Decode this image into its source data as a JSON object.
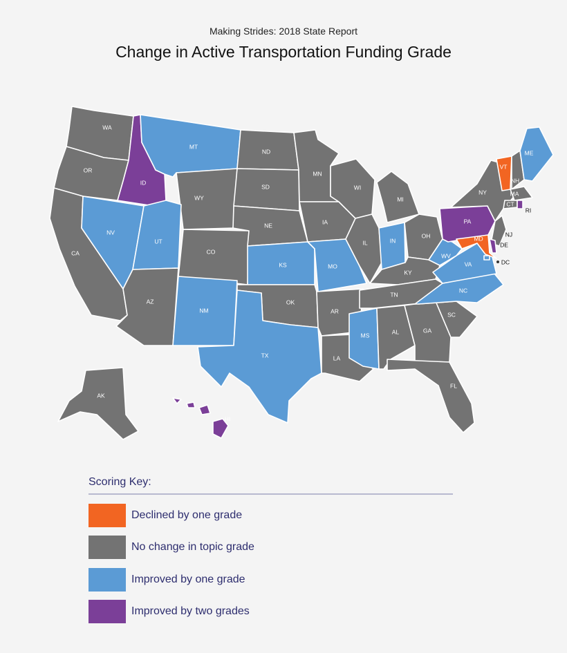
{
  "header": {
    "supertitle": "Making Strides:  2018 State Report",
    "title": "Change in Active Transportation Funding Grade"
  },
  "colors": {
    "declined": "#f26522",
    "no_change": "#737373",
    "improved_one": "#5b9bd5",
    "improved_two": "#7b3f98"
  },
  "states": [
    {
      "abbr": "WA",
      "category": "no_change"
    },
    {
      "abbr": "OR",
      "category": "no_change"
    },
    {
      "abbr": "CA",
      "category": "no_change"
    },
    {
      "abbr": "ID",
      "category": "improved_two"
    },
    {
      "abbr": "NV",
      "category": "improved_one"
    },
    {
      "abbr": "MT",
      "category": "improved_one"
    },
    {
      "abbr": "WY",
      "category": "no_change"
    },
    {
      "abbr": "UT",
      "category": "improved_one"
    },
    {
      "abbr": "AZ",
      "category": "no_change"
    },
    {
      "abbr": "CO",
      "category": "no_change"
    },
    {
      "abbr": "NM",
      "category": "improved_one"
    },
    {
      "abbr": "ND",
      "category": "no_change"
    },
    {
      "abbr": "SD",
      "category": "no_change"
    },
    {
      "abbr": "NE",
      "category": "no_change"
    },
    {
      "abbr": "KS",
      "category": "improved_one"
    },
    {
      "abbr": "OK",
      "category": "no_change"
    },
    {
      "abbr": "TX",
      "category": "improved_one"
    },
    {
      "abbr": "MN",
      "category": "no_change"
    },
    {
      "abbr": "IA",
      "category": "no_change"
    },
    {
      "abbr": "MO",
      "category": "improved_one"
    },
    {
      "abbr": "AR",
      "category": "no_change"
    },
    {
      "abbr": "LA",
      "category": "no_change"
    },
    {
      "abbr": "WI",
      "category": "no_change"
    },
    {
      "abbr": "IL",
      "category": "no_change"
    },
    {
      "abbr": "MI",
      "category": "no_change"
    },
    {
      "abbr": "IN",
      "category": "improved_one"
    },
    {
      "abbr": "OH",
      "category": "no_change"
    },
    {
      "abbr": "KY",
      "category": "no_change"
    },
    {
      "abbr": "TN",
      "category": "no_change"
    },
    {
      "abbr": "MS",
      "category": "improved_one"
    },
    {
      "abbr": "AL",
      "category": "no_change"
    },
    {
      "abbr": "GA",
      "category": "no_change"
    },
    {
      "abbr": "FL",
      "category": "no_change"
    },
    {
      "abbr": "SC",
      "category": "no_change"
    },
    {
      "abbr": "NC",
      "category": "improved_one"
    },
    {
      "abbr": "VA",
      "category": "improved_one"
    },
    {
      "abbr": "WV",
      "category": "improved_one"
    },
    {
      "abbr": "PA",
      "category": "improved_two"
    },
    {
      "abbr": "NY",
      "category": "no_change"
    },
    {
      "abbr": "VT",
      "category": "declined"
    },
    {
      "abbr": "NH",
      "category": "no_change"
    },
    {
      "abbr": "ME",
      "category": "improved_one"
    },
    {
      "abbr": "MA",
      "category": "no_change"
    },
    {
      "abbr": "CT",
      "category": "no_change"
    },
    {
      "abbr": "RI",
      "category": "improved_two"
    },
    {
      "abbr": "NJ",
      "category": "no_change"
    },
    {
      "abbr": "DE",
      "category": "improved_two"
    },
    {
      "abbr": "MD",
      "category": "declined"
    },
    {
      "abbr": "DC",
      "category": "improved_one"
    },
    {
      "abbr": "AK",
      "category": "no_change"
    },
    {
      "abbr": "HI",
      "category": "improved_two"
    }
  ],
  "legend": {
    "title": "Scoring Key:",
    "items": [
      {
        "category": "declined",
        "label": "Declined by one grade"
      },
      {
        "category": "no_change",
        "label": "No change in topic grade"
      },
      {
        "category": "improved_one",
        "label": "Improved by one grade"
      },
      {
        "category": "improved_two",
        "label": "Improved by two grades"
      }
    ]
  }
}
